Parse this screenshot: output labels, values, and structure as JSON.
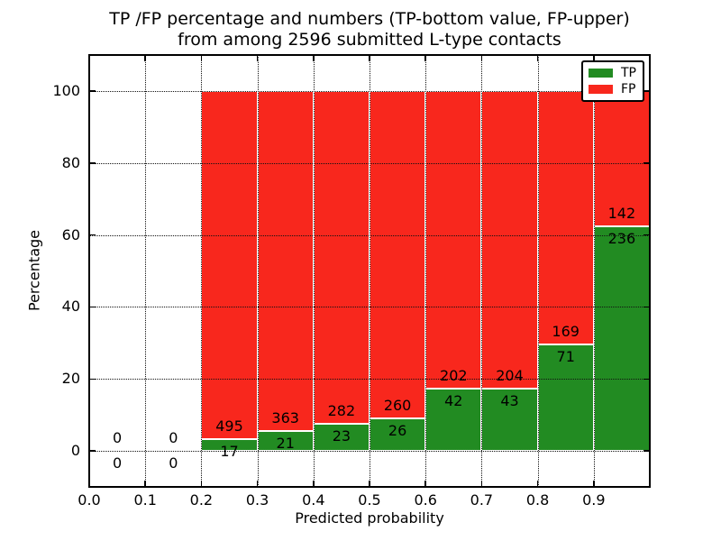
{
  "figure": {
    "title_line1": "TP /FP percentage and numbers (TP-bottom value, FP-upper)",
    "title_line2": "from among 2596 submitted L-type contacts"
  },
  "chart_data": {
    "type": "bar",
    "stacked": true,
    "title": "TP /FP percentage and numbers (TP-bottom value, FP-upper) from among 2596 submitted L-type contacts",
    "xlabel": "Predicted probability",
    "ylabel": "Percentage",
    "xlim": [
      0.0,
      1.0
    ],
    "ylim": [
      -10,
      110
    ],
    "xticks": [
      0.0,
      0.1,
      0.2,
      0.3,
      0.4,
      0.5,
      0.6,
      0.7,
      0.8,
      0.9
    ],
    "xtick_labels": [
      "0.0",
      "0.1",
      "0.2",
      "0.3",
      "0.4",
      "0.5",
      "0.6",
      "0.7",
      "0.8",
      "0.9"
    ],
    "yticks": [
      0,
      20,
      40,
      60,
      80,
      100
    ],
    "ytick_labels": [
      "0",
      "20",
      "40",
      "60",
      "80",
      "100"
    ],
    "grid": true,
    "grid_style": "dotted",
    "axisbelow": false,
    "units": "percent stacked to 100, labels show raw counts (FP above boundary, TP below)",
    "total_contacts": 2596,
    "legend": {
      "position": "upper right",
      "entries": [
        {
          "label": "TP",
          "color": "#228b22"
        },
        {
          "label": "FP",
          "color": "#f8271d"
        }
      ]
    },
    "bins": [
      {
        "range": [
          0.0,
          0.1
        ],
        "tp": 0,
        "fp": 0
      },
      {
        "range": [
          0.1,
          0.2
        ],
        "tp": 0,
        "fp": 0
      },
      {
        "range": [
          0.2,
          0.3
        ],
        "tp": 17,
        "fp": 495
      },
      {
        "range": [
          0.3,
          0.4
        ],
        "tp": 21,
        "fp": 363
      },
      {
        "range": [
          0.4,
          0.5
        ],
        "tp": 23,
        "fp": 282
      },
      {
        "range": [
          0.5,
          0.6
        ],
        "tp": 26,
        "fp": 260
      },
      {
        "range": [
          0.6,
          0.7
        ],
        "tp": 42,
        "fp": 202
      },
      {
        "range": [
          0.7,
          0.8
        ],
        "tp": 43,
        "fp": 204
      },
      {
        "range": [
          0.8,
          0.9
        ],
        "tp": 71,
        "fp": 169
      },
      {
        "range": [
          0.9,
          1.0
        ],
        "tp": 236,
        "fp": 142
      }
    ]
  },
  "colors": {
    "tp_green": "#228b22",
    "fp_red": "#f8271d",
    "bar_edge": "#ffffff",
    "grid": "#111111",
    "spine": "#000000",
    "text": "#000000",
    "background": "#ffffff"
  }
}
